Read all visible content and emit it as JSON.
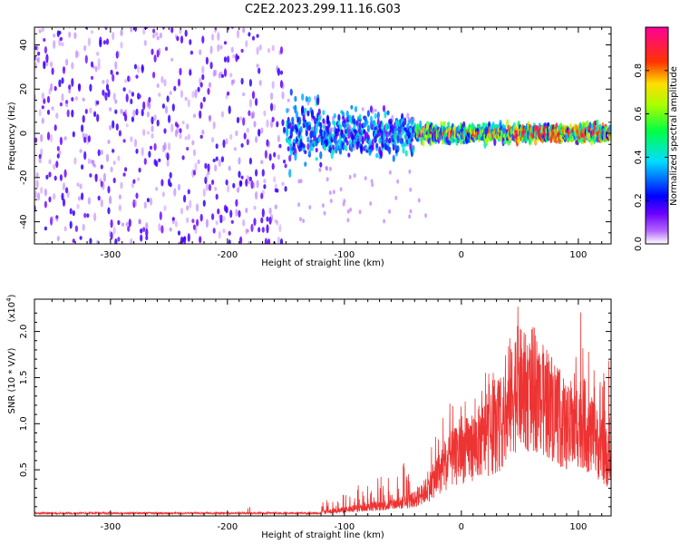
{
  "title": "C2E2.2023.299.11.16.G03",
  "chart_data": [
    {
      "type": "heatmap",
      "title": "C2E2.2023.299.11.16.G03",
      "xlabel": "Height of straight line (km)",
      "ylabel": "Frequency (Hz)",
      "xlim": [
        -365,
        128
      ],
      "ylim": [
        -50,
        48
      ],
      "x_ticks": [
        -300,
        -200,
        -100,
        0,
        100
      ],
      "x_tick_labels": [
        "-300",
        "-200",
        "-100",
        "0",
        "100"
      ],
      "y_ticks": [
        -40,
        -20,
        0,
        20,
        40
      ],
      "y_tick_labels": [
        "-40",
        "-20",
        "0",
        "20",
        "40"
      ],
      "colorbar": {
        "label": "Normalized spectral amplitude",
        "range": [
          0,
          1
        ],
        "ticks": [
          0.0,
          0.2,
          0.4,
          0.6,
          0.8
        ],
        "tick_labels": [
          "0.0",
          "0.2",
          "0.4",
          "0.6",
          "0.8"
        ],
        "colors": [
          "#ffffff",
          "#8800ff",
          "#0000ff",
          "#00ffff",
          "#00ff00",
          "#ffff00",
          "#ff0000",
          "#ff00aa"
        ]
      },
      "description_regions": [
        {
          "x_range": [
            -365,
            -150
          ],
          "freq_spread": 48,
          "level": 0.12
        },
        {
          "x_range": [
            -150,
            -40
          ],
          "freq_spread": 10,
          "level": 0.3
        },
        {
          "x_range": [
            -40,
            128
          ],
          "freq_spread": 4,
          "level": 0.55
        }
      ]
    },
    {
      "type": "line",
      "xlabel": "Height of straight line (km)",
      "ylabel": "SNR (10 * V/V)",
      "multiplier_label": "(x10",
      "multiplier_exp": "4",
      "multiplier_close": ")",
      "xlim": [
        -365,
        128
      ],
      "ylim": [
        0,
        2.35
      ],
      "x_ticks": [
        -300,
        -200,
        -100,
        0,
        100
      ],
      "x_tick_labels": [
        "-300",
        "-200",
        "-100",
        "0",
        "100"
      ],
      "y_ticks": [
        0.5,
        1.0,
        1.5,
        2.0
      ],
      "y_tick_labels": [
        "0.5",
        "1.0",
        "1.5",
        "2.0"
      ],
      "color": "#ee3333",
      "envelope": {
        "x": [
          -365,
          -300,
          -250,
          -200,
          -180,
          -150,
          -120,
          -100,
          -80,
          -60,
          -50,
          -40,
          -30,
          -20,
          -10,
          0,
          10,
          20,
          30,
          40,
          45,
          50,
          55,
          60,
          65,
          70,
          75,
          80,
          85,
          90,
          95,
          100,
          105,
          110,
          115,
          120,
          125,
          128
        ],
        "base": [
          0.02,
          0.02,
          0.02,
          0.03,
          0.04,
          0.04,
          0.05,
          0.08,
          0.12,
          0.15,
          0.18,
          0.22,
          0.35,
          0.55,
          0.75,
          0.85,
          0.95,
          1.05,
          1.15,
          1.35,
          1.7,
          1.72,
          1.65,
          1.72,
          1.68,
          1.55,
          1.52,
          1.45,
          1.3,
          1.2,
          1.1,
          1.3,
          1.25,
          1.1,
          1.0,
          0.9,
          0.75,
          0.7
        ],
        "peak": [
          0.04,
          0.05,
          0.05,
          0.07,
          0.12,
          0.1,
          0.15,
          0.25,
          0.4,
          0.55,
          0.6,
          0.45,
          0.7,
          0.95,
          1.25,
          1.35,
          1.4,
          1.55,
          1.6,
          1.9,
          2.3,
          2.35,
          2.2,
          1.8,
          1.75,
          1.7,
          1.65,
          1.65,
          1.6,
          1.7,
          1.9,
          2.3,
          2.25,
          1.9,
          1.6,
          1.5,
          2.1,
          1.2
        ]
      }
    }
  ]
}
